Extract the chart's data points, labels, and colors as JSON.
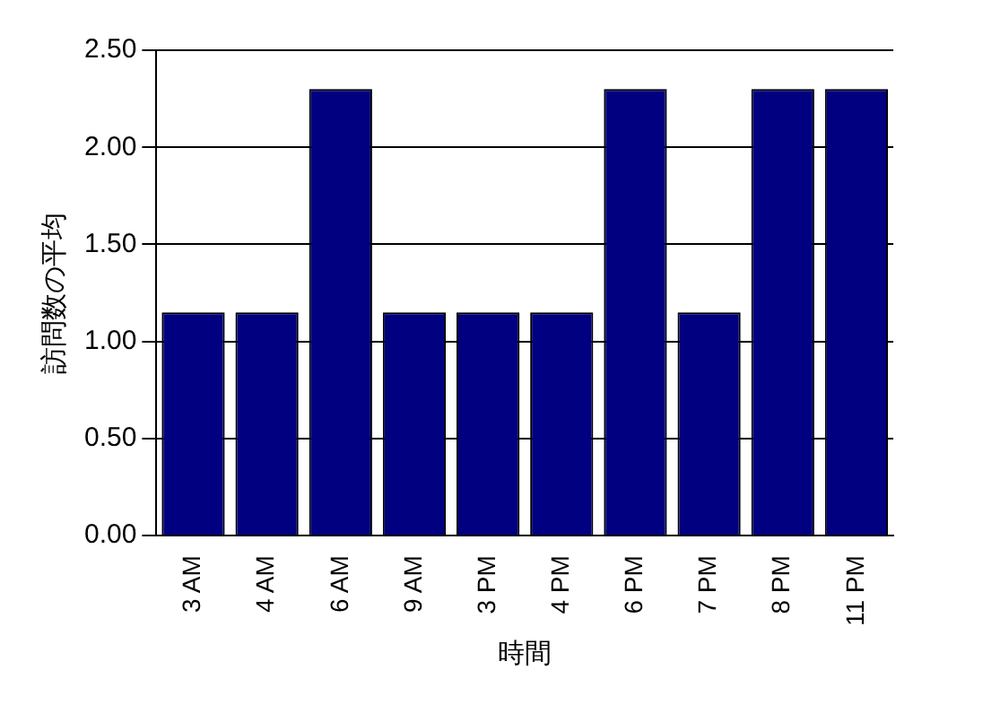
{
  "chart_data": {
    "type": "bar",
    "xlabel": "時間",
    "ylabel": "訪問数の平均",
    "categories": [
      "3 AM",
      "4 AM",
      "6 AM",
      "9 AM",
      "3 PM",
      "4 PM",
      "6 PM",
      "7 PM",
      "8 PM",
      "11 PM"
    ],
    "values": [
      1.15,
      1.15,
      2.3,
      1.15,
      1.15,
      1.15,
      2.3,
      1.15,
      2.3,
      2.3
    ],
    "color": "#000080",
    "ylim": [
      0,
      2.5
    ],
    "yticks": [
      {
        "value": 0,
        "label": "0.00"
      },
      {
        "value": 0.5,
        "label": "0.50"
      },
      {
        "value": 1,
        "label": "1.00"
      },
      {
        "value": 1.5,
        "label": "1.50"
      },
      {
        "value": 2,
        "label": "2.00"
      },
      {
        "value": 2.5,
        "label": "2.50"
      }
    ],
    "grid": "y",
    "legend": false
  }
}
